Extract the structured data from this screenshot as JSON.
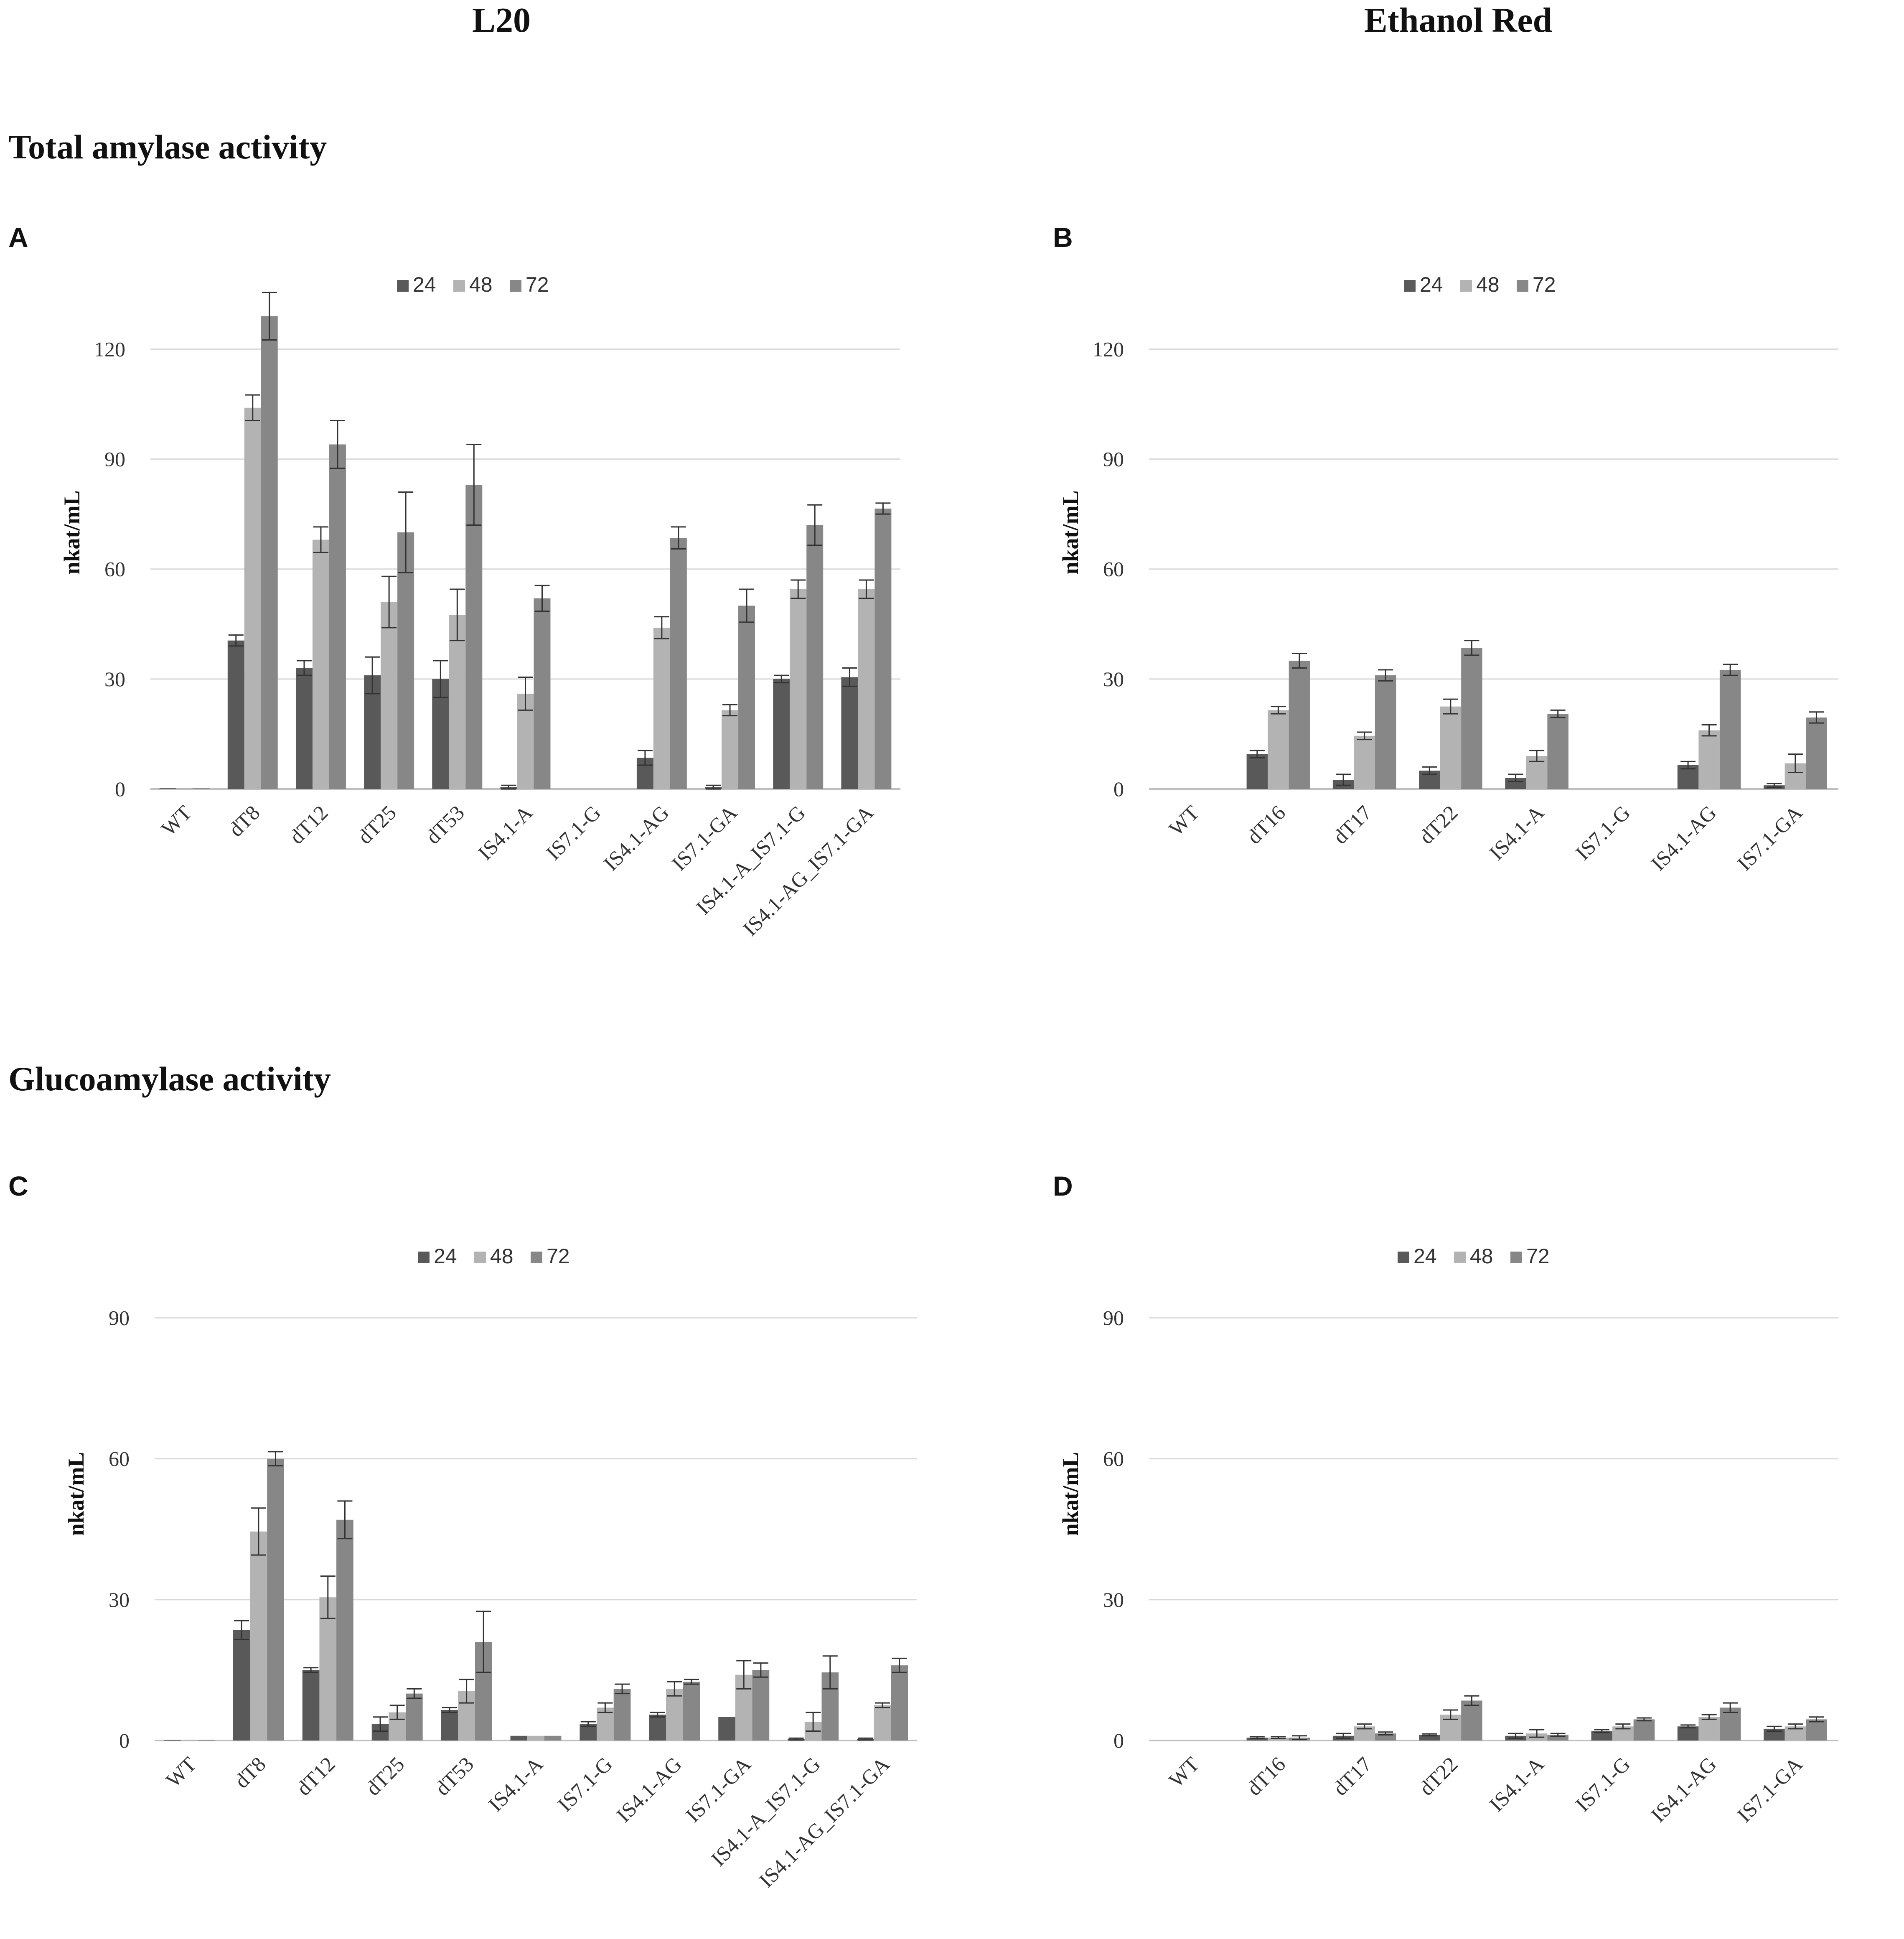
{
  "headers": {
    "left": "L20",
    "right": "Ethanol Red"
  },
  "sections": {
    "top": "Total amylase activity",
    "bottom": "Glucoamylase activity"
  },
  "colors": {
    "s24": "#595959",
    "s48": "#b3b3b3",
    "s72": "#878787",
    "grid": "#d9d9d9",
    "axis": "#bfbfbf",
    "error": "#333333"
  },
  "chart_data": [
    {
      "id": "A",
      "letter": "A",
      "type": "bar",
      "ylabel": "nkat/mL",
      "ylim": [
        0,
        140
      ],
      "yticks": [
        0,
        30,
        60,
        90,
        120
      ],
      "categories": [
        "WT",
        "dT8",
        "dT12",
        "dT25",
        "dT53",
        "IS4.1-A",
        "IS7.1-G",
        "IS4.1-AG",
        "IS7.1-GA",
        "IS4.1-A_IS7.1-G",
        "IS4.1-AG_IS7.1-GA"
      ],
      "series": [
        {
          "name": "24",
          "color_key": "s24",
          "values": [
            0.2,
            40.5,
            33,
            31,
            30,
            0.5,
            0,
            8.5,
            0.5,
            30,
            30.5
          ],
          "errors": [
            0,
            1.5,
            2,
            5,
            5,
            0.5,
            0,
            2,
            0.5,
            1,
            2.5
          ]
        },
        {
          "name": "48",
          "color_key": "s48",
          "values": [
            0.2,
            104,
            68,
            51,
            47.5,
            26,
            0,
            44,
            21.5,
            54.5,
            54.5
          ],
          "errors": [
            0,
            3.5,
            3.5,
            7,
            7,
            4.5,
            0,
            3,
            1.5,
            2.5,
            2.5
          ]
        },
        {
          "name": "72",
          "color_key": "s72",
          "values": [
            0.2,
            129,
            94,
            70,
            83,
            52,
            0,
            68.5,
            50,
            72,
            76.5
          ],
          "errors": [
            0,
            6.5,
            6.5,
            11,
            11,
            3.5,
            0,
            3,
            4.5,
            5.5,
            1.5
          ]
        }
      ]
    },
    {
      "id": "B",
      "letter": "B",
      "type": "bar",
      "ylabel": "nkat/mL",
      "ylim": [
        0,
        140
      ],
      "yticks": [
        0,
        30,
        60,
        90,
        120
      ],
      "categories": [
        "WT",
        "dT16",
        "dT17",
        "dT22",
        "IS4.1-A",
        "IS7.1-G",
        "IS4.1-AG",
        "IS7.1-GA"
      ],
      "series": [
        {
          "name": "24",
          "color_key": "s24",
          "values": [
            0,
            9.5,
            2.5,
            5,
            3,
            0,
            6.5,
            1
          ],
          "errors": [
            0,
            1,
            1.5,
            1,
            1,
            0,
            1,
            0.5
          ]
        },
        {
          "name": "48",
          "color_key": "s48",
          "values": [
            0,
            21.5,
            14.5,
            22.5,
            9,
            0,
            16,
            7
          ],
          "errors": [
            0,
            1,
            1,
            2,
            1.5,
            0,
            1.5,
            2.5
          ]
        },
        {
          "name": "72",
          "color_key": "s72",
          "values": [
            0,
            35,
            31,
            38.5,
            20.5,
            0,
            32.5,
            19.5
          ],
          "errors": [
            0,
            2,
            1.5,
            2,
            1,
            0,
            1.5,
            1.5
          ]
        }
      ]
    },
    {
      "id": "C",
      "letter": "C",
      "type": "bar",
      "ylabel": "nkat/mL",
      "ylim": [
        0,
        105
      ],
      "yticks": [
        0,
        30,
        60,
        90
      ],
      "categories": [
        "WT",
        "dT8",
        "dT12",
        "dT25",
        "dT53",
        "IS4.1-A",
        "IS7.1-G",
        "IS4.1-AG",
        "IS7.1-GA",
        "IS4.1-A_IS7.1-G",
        "IS4.1-AG_IS7.1-GA"
      ],
      "series": [
        {
          "name": "24",
          "color_key": "s24",
          "values": [
            0.1,
            23.5,
            15,
            3.5,
            6.5,
            1,
            3.5,
            5.5,
            5,
            0.3,
            0.3
          ],
          "errors": [
            0,
            2,
            0.5,
            1.5,
            0.5,
            0,
            0.5,
            0.5,
            0,
            0.2,
            0.2
          ]
        },
        {
          "name": "48",
          "color_key": "s48",
          "values": [
            0.1,
            44.5,
            30.5,
            6,
            10.5,
            1,
            7,
            11,
            14,
            4,
            7.5
          ],
          "errors": [
            0,
            5,
            4.5,
            1.5,
            2.5,
            0,
            1,
            1.5,
            3,
            2,
            0.5
          ]
        },
        {
          "name": "72",
          "color_key": "s72",
          "values": [
            0.1,
            60,
            47,
            10,
            21,
            1,
            11,
            12.5,
            15,
            14.5,
            16
          ],
          "errors": [
            0,
            1.5,
            4,
            1,
            6.5,
            0,
            1,
            0.5,
            1.5,
            3.5,
            1.5
          ]
        }
      ]
    },
    {
      "id": "D",
      "letter": "D",
      "type": "bar",
      "ylabel": "nkat/mL",
      "ylim": [
        0,
        105
      ],
      "yticks": [
        0,
        30,
        60,
        90
      ],
      "categories": [
        "WT",
        "dT16",
        "dT17",
        "dT22",
        "IS4.1-A",
        "IS7.1-G",
        "IS4.1-AG",
        "IS7.1-GA"
      ],
      "series": [
        {
          "name": "24",
          "color_key": "s24",
          "values": [
            0,
            0.6,
            1,
            1.2,
            1,
            2,
            3,
            2.5
          ],
          "errors": [
            0,
            0.2,
            0.5,
            0.2,
            0.5,
            0.3,
            0.3,
            0.5
          ]
        },
        {
          "name": "48",
          "color_key": "s48",
          "values": [
            0,
            0.6,
            3,
            5.5,
            1.5,
            3,
            5,
            3
          ],
          "errors": [
            0,
            0.2,
            0.5,
            1,
            0.8,
            0.5,
            0.5,
            0.5
          ]
        },
        {
          "name": "72",
          "color_key": "s72",
          "values": [
            0,
            0.6,
            1.5,
            8.5,
            1.2,
            4.5,
            7,
            4.5
          ],
          "errors": [
            0,
            0.4,
            0.3,
            1,
            0.3,
            0.3,
            1,
            0.5
          ]
        }
      ]
    }
  ]
}
